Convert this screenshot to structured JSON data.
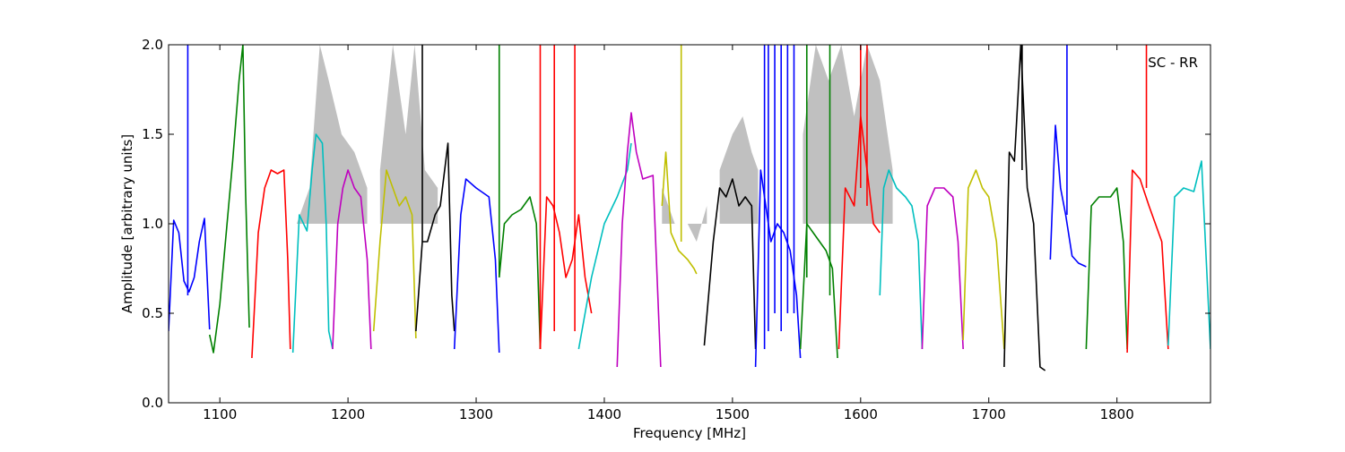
{
  "chart_data": {
    "type": "line",
    "title": "",
    "annotation": "SC - RR",
    "xlabel": "Frequency [MHz]",
    "ylabel": "Amplitude [arbitrary units]",
    "xlim": [
      1060,
      1873
    ],
    "ylim": [
      0.0,
      2.0
    ],
    "xticks": [
      1100,
      1200,
      1300,
      1400,
      1500,
      1600,
      1700,
      1800
    ],
    "xtick_labels": [
      "1100",
      "1200",
      "1300",
      "1400",
      "1500",
      "1600",
      "1700",
      "1800"
    ],
    "yticks": [
      0.0,
      0.5,
      1.0,
      1.5,
      2.0
    ],
    "ytick_labels": [
      "0.0",
      "0.5",
      "1.0",
      "1.5",
      "2.0"
    ],
    "grid": false,
    "legend": "none",
    "background_color": "#c0c0c0",
    "series": [
      {
        "color": "#0000ff",
        "x": [
          1060,
          1064,
          1068,
          1072,
          1076,
          1080,
          1084,
          1088,
          1092
        ],
        "y": [
          0.4,
          1.02,
          0.95,
          0.68,
          0.62,
          0.7,
          0.9,
          1.03,
          0.41
        ]
      },
      {
        "color": "#008000",
        "x": [
          1092,
          1095,
          1100,
          1105,
          1110,
          1115,
          1118,
          1120,
          1123
        ],
        "y": [
          0.38,
          0.28,
          0.55,
          0.95,
          1.35,
          1.8,
          2.0,
          1.2,
          0.42
        ]
      },
      {
        "color": "#ff0000",
        "x": [
          1125,
          1130,
          1135,
          1140,
          1145,
          1150,
          1153,
          1155
        ],
        "y": [
          0.25,
          0.95,
          1.2,
          1.3,
          1.28,
          1.3,
          0.8,
          0.3
        ]
      },
      {
        "color": "#00bfbf",
        "x": [
          1157,
          1162,
          1168,
          1172,
          1175,
          1180,
          1183,
          1185,
          1188
        ],
        "y": [
          0.28,
          1.05,
          0.96,
          1.3,
          1.5,
          1.45,
          1.0,
          0.4,
          0.3
        ]
      },
      {
        "color": "#bf00bf",
        "x": [
          1188,
          1192,
          1196,
          1200,
          1205,
          1210,
          1215,
          1218
        ],
        "y": [
          0.3,
          1.0,
          1.2,
          1.3,
          1.2,
          1.15,
          0.8,
          0.3
        ]
      },
      {
        "color": "#bfbf00",
        "x": [
          1220,
          1225,
          1230,
          1235,
          1240,
          1245,
          1250,
          1253
        ],
        "y": [
          0.4,
          0.9,
          1.3,
          1.2,
          1.1,
          1.15,
          1.05,
          0.36
        ]
      },
      {
        "color": "#000000",
        "x": [
          1253,
          1258,
          1262,
          1268,
          1272,
          1278,
          1281,
          1283
        ],
        "y": [
          0.4,
          0.9,
          0.9,
          1.05,
          1.1,
          1.45,
          0.6,
          0.4
        ]
      },
      {
        "color": "#0000ff",
        "x": [
          1283,
          1288,
          1292,
          1300,
          1310,
          1315,
          1318
        ],
        "y": [
          0.3,
          1.05,
          1.25,
          1.2,
          1.15,
          0.8,
          0.28
        ]
      },
      {
        "color": "#008000",
        "x": [
          1318,
          1322,
          1328,
          1335,
          1342,
          1347,
          1350
        ],
        "y": [
          0.7,
          1.0,
          1.05,
          1.08,
          1.15,
          1.0,
          0.3
        ]
      },
      {
        "color": "#ff0000",
        "x": [
          1350,
          1355,
          1360,
          1365,
          1370,
          1375,
          1380,
          1385,
          1390
        ],
        "y": [
          0.3,
          1.15,
          1.1,
          0.95,
          0.7,
          0.8,
          1.05,
          0.7,
          0.5
        ]
      },
      {
        "color": "#00bfbf",
        "x": [
          1380,
          1390,
          1400,
          1410,
          1418,
          1421
        ],
        "y": [
          0.3,
          0.7,
          1.0,
          1.15,
          1.3,
          1.45
        ]
      },
      {
        "color": "#bf00bf",
        "x": [
          1410,
          1414,
          1418,
          1421,
          1425,
          1430,
          1438,
          1444
        ],
        "y": [
          0.2,
          1.0,
          1.4,
          1.62,
          1.4,
          1.25,
          1.27,
          0.2
        ]
      },
      {
        "color": "#bfbf00",
        "x": [
          1445,
          1448,
          1452,
          1458,
          1465,
          1470,
          1472
        ],
        "y": [
          1.1,
          1.4,
          0.95,
          0.85,
          0.8,
          0.75,
          0.72
        ]
      },
      {
        "color": "#000000",
        "x": [
          1478,
          1485,
          1490,
          1495,
          1500,
          1505,
          1510,
          1515,
          1518
        ],
        "y": [
          0.32,
          0.9,
          1.2,
          1.15,
          1.25,
          1.1,
          1.15,
          1.1,
          0.3
        ]
      },
      {
        "color": "#0000ff",
        "x": [
          1518,
          1522,
          1526,
          1530,
          1535,
          1540,
          1545,
          1550,
          1553
        ],
        "y": [
          0.2,
          1.3,
          1.1,
          0.9,
          1.0,
          0.95,
          0.85,
          0.6,
          0.25
        ]
      },
      {
        "color": "#008000",
        "x": [
          1553,
          1558,
          1563,
          1568,
          1573,
          1578,
          1582
        ],
        "y": [
          0.3,
          1.0,
          0.95,
          0.9,
          0.85,
          0.75,
          0.25
        ]
      },
      {
        "color": "#ff0000",
        "x": [
          1583,
          1588,
          1595,
          1600,
          1605,
          1610,
          1615
        ],
        "y": [
          0.3,
          1.2,
          1.1,
          1.6,
          1.3,
          1.0,
          0.95
        ]
      },
      {
        "color": "#00bfbf",
        "x": [
          1615,
          1618,
          1622,
          1628,
          1635,
          1640,
          1645,
          1648
        ],
        "y": [
          0.6,
          1.2,
          1.3,
          1.2,
          1.15,
          1.1,
          0.9,
          0.3
        ]
      },
      {
        "color": "#bf00bf",
        "x": [
          1648,
          1652,
          1658,
          1665,
          1672,
          1676,
          1680
        ],
        "y": [
          0.3,
          1.1,
          1.2,
          1.2,
          1.15,
          0.9,
          0.3
        ]
      },
      {
        "color": "#bfbf00",
        "x": [
          1680,
          1684,
          1690,
          1695,
          1700,
          1706,
          1712
        ],
        "y": [
          0.35,
          1.2,
          1.3,
          1.2,
          1.15,
          0.9,
          0.3
        ]
      },
      {
        "color": "#000000",
        "x": [
          1712,
          1716,
          1720,
          1725,
          1730,
          1735,
          1740,
          1744
        ],
        "y": [
          0.2,
          1.4,
          1.35,
          2.0,
          1.2,
          1.0,
          0.2,
          0.18
        ]
      },
      {
        "color": "#0000ff",
        "x": [
          1748,
          1752,
          1756,
          1760,
          1765,
          1770,
          1776
        ],
        "y": [
          0.8,
          1.55,
          1.2,
          1.05,
          0.82,
          0.78,
          0.76
        ]
      },
      {
        "color": "#008000",
        "x": [
          1776,
          1780,
          1786,
          1795,
          1800,
          1805,
          1808
        ],
        "y": [
          0.3,
          1.1,
          1.15,
          1.15,
          1.2,
          0.9,
          0.3
        ]
      },
      {
        "color": "#ff0000",
        "x": [
          1808,
          1812,
          1818,
          1825,
          1830,
          1835,
          1840
        ],
        "y": [
          0.28,
          1.3,
          1.25,
          1.1,
          1.0,
          0.9,
          0.3
        ]
      },
      {
        "color": "#00bfbf",
        "x": [
          1840,
          1845,
          1852,
          1860,
          1866,
          1873
        ],
        "y": [
          0.32,
          1.15,
          1.2,
          1.18,
          1.35,
          0.3
        ]
      }
    ],
    "spikes": [
      {
        "x": 1075,
        "y0": 0.6,
        "y1": 2.0,
        "color": "#0000ff"
      },
      {
        "x": 1258,
        "y0": 0.9,
        "y1": 2.0,
        "color": "#000000"
      },
      {
        "x": 1318,
        "y0": 0.7,
        "y1": 2.0,
        "color": "#008000"
      },
      {
        "x": 1350,
        "y0": 0.3,
        "y1": 2.0,
        "color": "#ff0000"
      },
      {
        "x": 1361,
        "y0": 0.4,
        "y1": 2.0,
        "color": "#ff0000"
      },
      {
        "x": 1377,
        "y0": 0.4,
        "y1": 2.0,
        "color": "#ff0000"
      },
      {
        "x": 1460,
        "y0": 0.9,
        "y1": 2.0,
        "color": "#bfbf00"
      },
      {
        "x": 1525,
        "y0": 0.3,
        "y1": 2.0,
        "color": "#0000ff"
      },
      {
        "x": 1528,
        "y0": 0.4,
        "y1": 2.0,
        "color": "#0000ff"
      },
      {
        "x": 1533,
        "y0": 0.5,
        "y1": 2.0,
        "color": "#0000ff"
      },
      {
        "x": 1538,
        "y0": 0.4,
        "y1": 2.0,
        "color": "#0000ff"
      },
      {
        "x": 1543,
        "y0": 0.5,
        "y1": 2.0,
        "color": "#0000ff"
      },
      {
        "x": 1548,
        "y0": 0.5,
        "y1": 2.0,
        "color": "#0000ff"
      },
      {
        "x": 1558,
        "y0": 0.7,
        "y1": 2.0,
        "color": "#008000"
      },
      {
        "x": 1576,
        "y0": 0.6,
        "y1": 2.0,
        "color": "#008000"
      },
      {
        "x": 1600,
        "y0": 1.2,
        "y1": 2.0,
        "color": "#ff0000"
      },
      {
        "x": 1605,
        "y0": 1.1,
        "y1": 2.0,
        "color": "#ff0000"
      },
      {
        "x": 1726,
        "y0": 1.3,
        "y1": 2.0,
        "color": "#000000"
      },
      {
        "x": 1761,
        "y0": 1.05,
        "y1": 2.0,
        "color": "#0000ff"
      },
      {
        "x": 1823,
        "y0": 1.2,
        "y1": 2.0,
        "color": "#ff0000"
      }
    ],
    "gray_bands": [
      {
        "x": [
          1160,
          1170,
          1178,
          1185,
          1195,
          1205,
          1215
        ],
        "y": [
          1.0,
          1.2,
          2.0,
          1.8,
          1.5,
          1.4,
          1.2
        ]
      },
      {
        "x": [
          1225,
          1235,
          1245,
          1252,
          1260,
          1270
        ],
        "y": [
          1.3,
          2.0,
          1.5,
          2.0,
          1.3,
          1.2
        ]
      },
      {
        "x": [
          1445,
          1455,
          1465,
          1472,
          1480
        ],
        "y": [
          1.2,
          1.0,
          1.0,
          0.9,
          1.1
        ]
      },
      {
        "x": [
          1490,
          1500,
          1508,
          1515,
          1520
        ],
        "y": [
          1.3,
          1.5,
          1.6,
          1.4,
          1.3
        ]
      },
      {
        "x": [
          1555,
          1565,
          1575,
          1585,
          1595,
          1605,
          1615,
          1625
        ],
        "y": [
          1.5,
          2.0,
          1.8,
          2.0,
          1.6,
          2.0,
          1.8,
          1.3
        ]
      }
    ]
  }
}
